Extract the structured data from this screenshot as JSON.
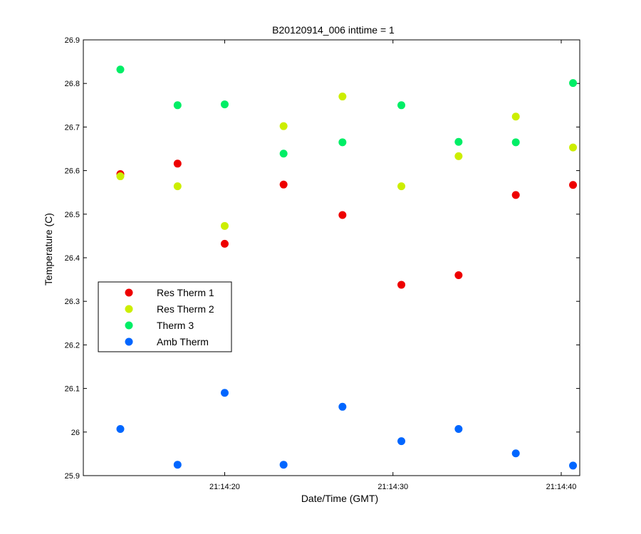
{
  "chart_data": {
    "type": "scatter",
    "title": "B20120914_006 inttime = 1",
    "xlabel": "Date/Time (GMT)",
    "ylabel": "Temperature (C)",
    "x_unit": "time (HH:MM:SS)",
    "xlim": [
      "21:14:11.6",
      "21:14:41.1"
    ],
    "ylim": [
      25.9,
      26.9
    ],
    "x_ticks": [
      "21:14:20",
      "21:14:30",
      "21:14:40"
    ],
    "y_ticks": [
      "25.9",
      "26",
      "26.1",
      "26.2",
      "26.3",
      "26.4",
      "26.5",
      "26.6",
      "26.7",
      "26.8",
      "26.9"
    ],
    "grid": false,
    "legend_position": "middle-left",
    "x": [
      "21:14:13.8",
      "21:14:17.2",
      "21:14:20.0",
      "21:14:23.5",
      "21:14:27.0",
      "21:14:30.5",
      "21:14:33.9",
      "21:14:37.3",
      "21:14:40.7"
    ],
    "series": [
      {
        "name": "Res Therm 1",
        "color": "#ee0000",
        "values": [
          26.592,
          26.616,
          26.432,
          26.568,
          26.498,
          26.338,
          26.36,
          26.544,
          26.567
        ]
      },
      {
        "name": "Res Therm 2",
        "color": "#ccee00",
        "values": [
          26.587,
          26.564,
          26.473,
          26.702,
          26.77,
          26.564,
          26.633,
          26.724,
          26.653
        ]
      },
      {
        "name": "Therm 3",
        "color": "#00ee66",
        "values": [
          26.832,
          26.75,
          26.752,
          26.639,
          26.665,
          26.75,
          26.666,
          26.665,
          26.801
        ]
      },
      {
        "name": "Amb Therm",
        "color": "#0066ff",
        "values": [
          26.007,
          25.925,
          26.09,
          25.925,
          26.058,
          25.979,
          26.007,
          25.951,
          25.923
        ]
      }
    ]
  }
}
